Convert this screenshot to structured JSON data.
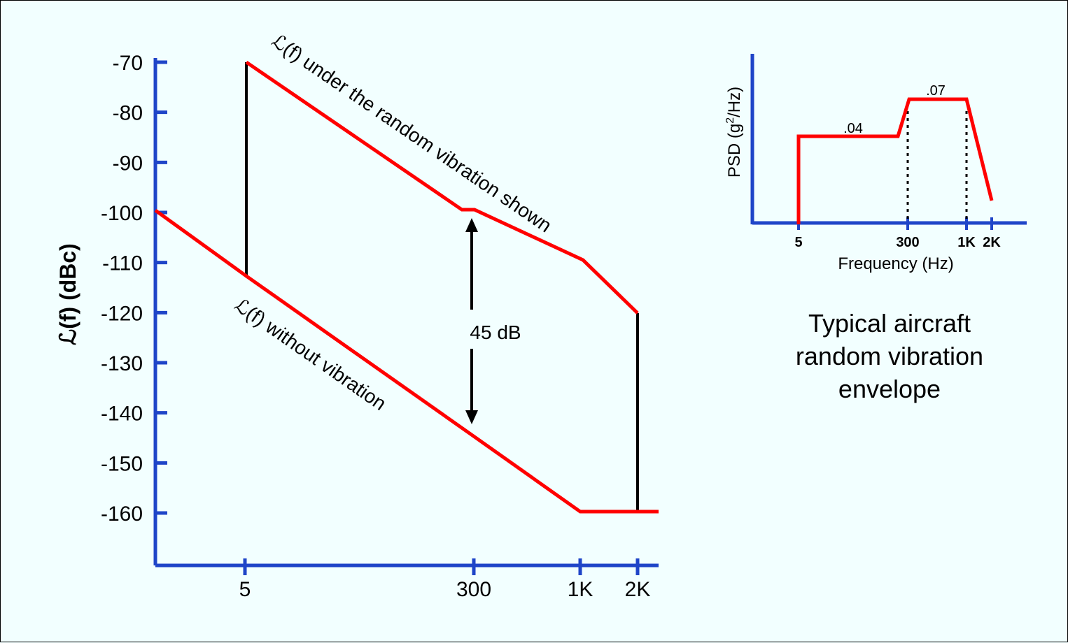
{
  "chart_data": [
    {
      "type": "line",
      "ylabel": "ℒ(f) (dBc)",
      "yticks": [
        -70,
        -80,
        -90,
        -100,
        -110,
        -120,
        -130,
        -140,
        -150,
        -160
      ],
      "xtick_labels": [
        "5",
        "300",
        "1K",
        "2K"
      ],
      "ylim": [
        -170,
        -70
      ],
      "grid": false,
      "series": [
        {
          "name": "ℒ(f) under the random vibration shown",
          "points": [
            [
              "5",
              -70
            ],
            [
              "300",
              -100
            ],
            [
              "1K",
              -110
            ],
            [
              "2K",
              -120
            ]
          ]
        },
        {
          "name": "ℒ(f) without vibration",
          "points": [
            [
              "5",
              -113
            ],
            [
              "300",
              -145
            ],
            [
              "1K",
              -160
            ],
            [
              "2K",
              -160
            ]
          ]
        }
      ],
      "annotation": "45 dB"
    },
    {
      "type": "line",
      "ylabel": "PSD (g²/Hz)",
      "xlabel": "Frequency (Hz)",
      "xtick_labels": [
        "5",
        "300",
        "1K",
        "2K"
      ],
      "value_labels": [
        ".04",
        ".07"
      ],
      "grid": false,
      "caption": [
        "Typical aircraft",
        "random vibration",
        "envelope"
      ]
    }
  ],
  "colors": {
    "axis": "#1f45c8",
    "curve": "#ff0000",
    "marker": "#000000",
    "background": "#f2ffff"
  }
}
